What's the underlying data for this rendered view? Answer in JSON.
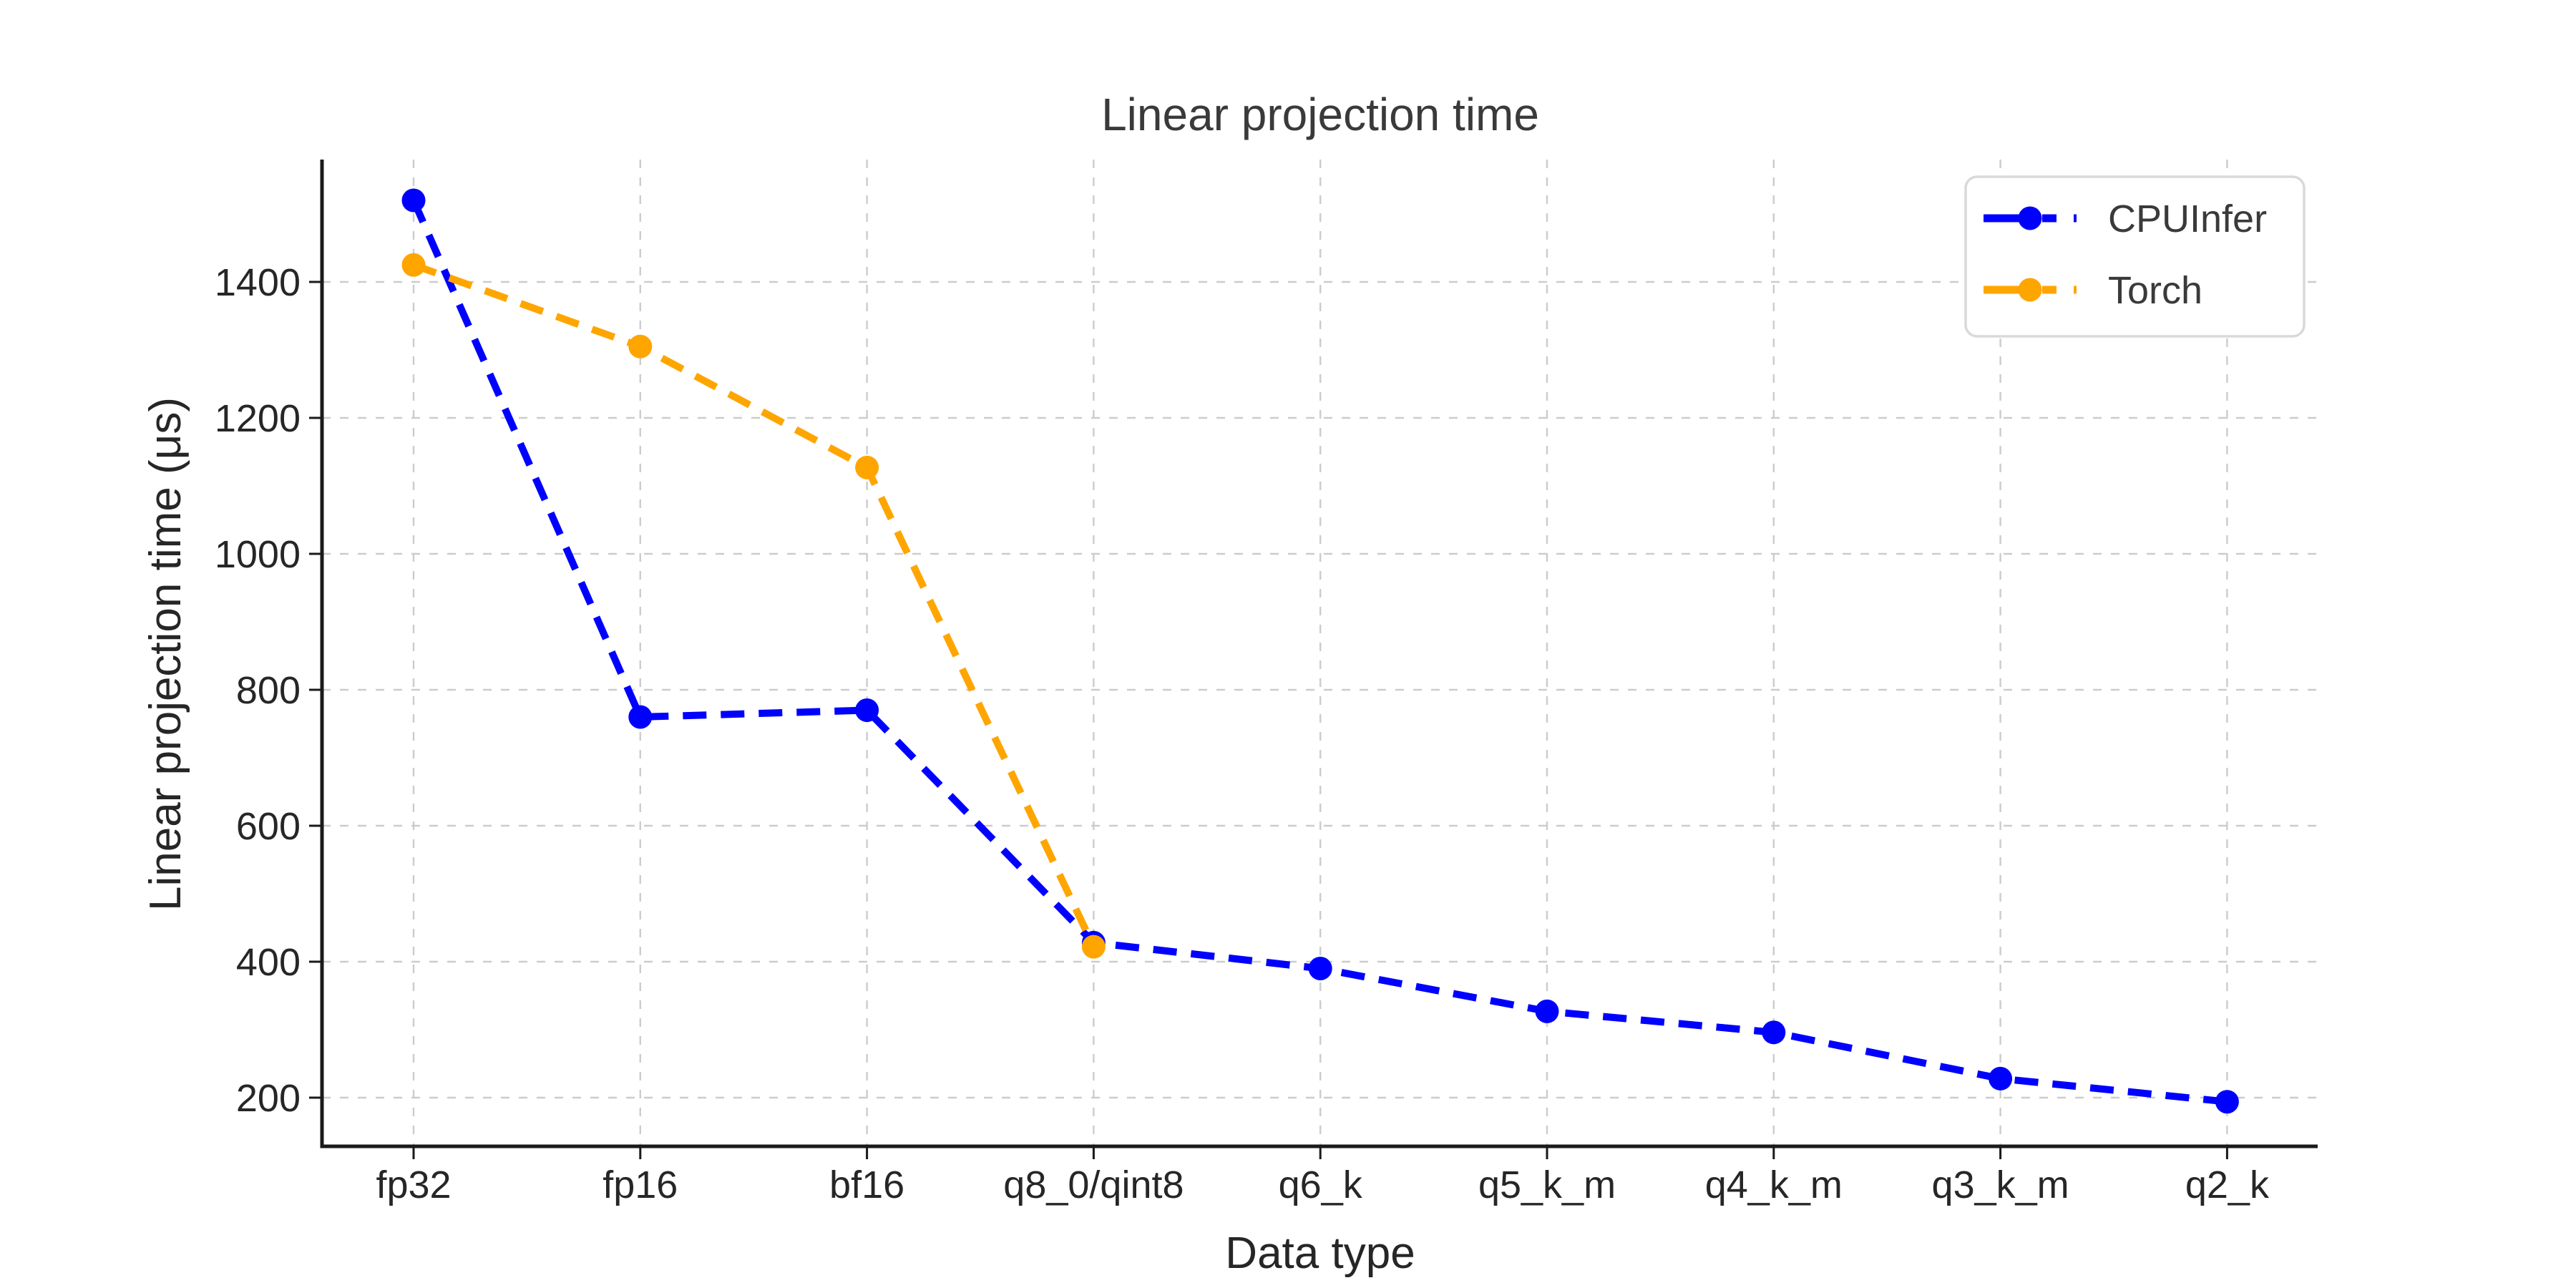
{
  "figure": {
    "background": "#ffffff"
  },
  "chart_data": {
    "type": "line",
    "title": "Linear projection time",
    "xlabel": "Data type",
    "ylabel": "Linear projection time (μs)",
    "categories": [
      "fp32",
      "fp16",
      "bf16",
      "q8_0/qint8",
      "q6_k",
      "q5_k_m",
      "q4_k_m",
      "q3_k_m",
      "q2_k"
    ],
    "series": [
      {
        "name": "CPUInfer",
        "color": "#0000ff",
        "marker": "circle",
        "line_style": "dashed",
        "values": [
          1520,
          760,
          770,
          428,
          390,
          327,
          296,
          228,
          194
        ]
      },
      {
        "name": "Torch",
        "color": "#ffa500",
        "marker": "circle",
        "line_style": "dashed",
        "values": [
          1425,
          1305,
          1127,
          422,
          null,
          null,
          null,
          null,
          null
        ]
      }
    ],
    "yticks": [
      200,
      400,
      600,
      800,
      1000,
      1200,
      1400
    ],
    "ylim": [
      125,
      1580
    ],
    "grid": true,
    "legend_position": "upper right"
  },
  "legend": {
    "items": [
      {
        "label": "CPUInfer",
        "color": "#0000ff"
      },
      {
        "label": "Torch",
        "color": "#ffa500"
      }
    ]
  },
  "colors": {
    "text": "#3a3a3a",
    "tick_text": "#262626",
    "spine": "#1a1a1a",
    "grid": "#cccccc",
    "legend_border": "#d9d9d9",
    "background": "#ffffff"
  }
}
